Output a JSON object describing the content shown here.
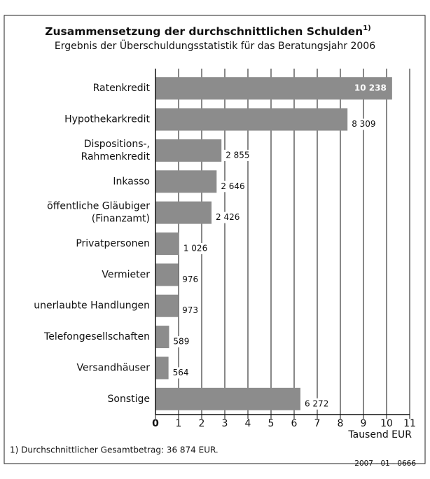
{
  "chart_data": {
    "type": "bar",
    "orientation": "horizontal",
    "title": "Zusammensetzung der durchschnittlichen Schulden",
    "title_note": "1)",
    "subtitle": "Ergebnis der Überschuldungsstatistik für das Beratungsjahr 2006",
    "categories": [
      "Ratenkredit",
      "Hypothekarkredit",
      "Dispositions-,\nRahmenkredit",
      "Inkasso",
      "öffentliche Gläubiger\n(Finanzamt)",
      "Privatpersonen",
      "Vermieter",
      "unerlaubte Handlungen",
      "Telefongesellschaften",
      "Versandhäuser",
      "Sonstige"
    ],
    "values": [
      10.238,
      8.309,
      2.855,
      2.646,
      2.426,
      1.026,
      0.976,
      0.973,
      0.589,
      0.564,
      6.272
    ],
    "value_labels": [
      "10 238",
      "8 309",
      "2 855",
      "2 646",
      "2 426",
      "1 026",
      "976",
      "973",
      "589",
      "564",
      "6 272"
    ],
    "color": "#8c8c8c",
    "xlim": [
      0,
      11
    ],
    "xticks": [
      0,
      1,
      2,
      3,
      4,
      5,
      6,
      7,
      8,
      9,
      10,
      11
    ],
    "xlabel": "Tausend EUR",
    "grid": true,
    "footnote": "1) Durchschnittlicher Gesamtbetrag: 36 874 EUR.",
    "code": "2007 - 01 - 0666"
  }
}
